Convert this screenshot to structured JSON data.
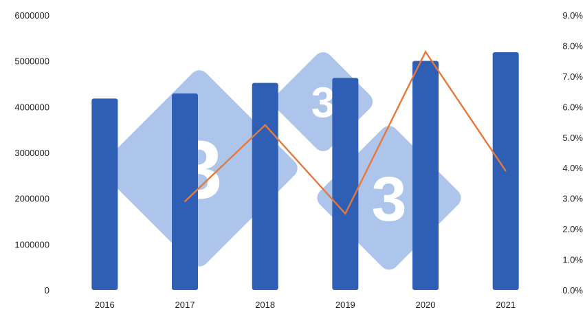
{
  "chart_data": {
    "type": "bar",
    "categories": [
      "2016",
      "2017",
      "2018",
      "2019",
      "2020",
      "2021"
    ],
    "series": [
      {
        "type": "bar",
        "axis": "left",
        "values": [
          4180000,
          4290000,
          4520000,
          4630000,
          5000000,
          5190000
        ]
      },
      {
        "type": "line",
        "axis": "right",
        "values": [
          null,
          2.9,
          5.4,
          2.5,
          7.8,
          3.9
        ]
      }
    ],
    "y_left": {
      "ylim": [
        0,
        6000000
      ],
      "ticks": [
        "0",
        "1000000",
        "2000000",
        "3000000",
        "4000000",
        "5000000",
        "6000000"
      ]
    },
    "y_right": {
      "ylim": [
        0,
        9
      ],
      "ticks": [
        "0.0%",
        "1.0%",
        "2.0%",
        "3.0%",
        "4.0%",
        "5.0%",
        "6.0%",
        "7.0%",
        "8.0%",
        "9.0%"
      ]
    },
    "watermark": "3",
    "grid": false,
    "legend": "none",
    "colors": {
      "bar": "#2f5fb4",
      "line": "#e8783a",
      "watermark": "#9fbbe6",
      "text": "#222222"
    }
  }
}
